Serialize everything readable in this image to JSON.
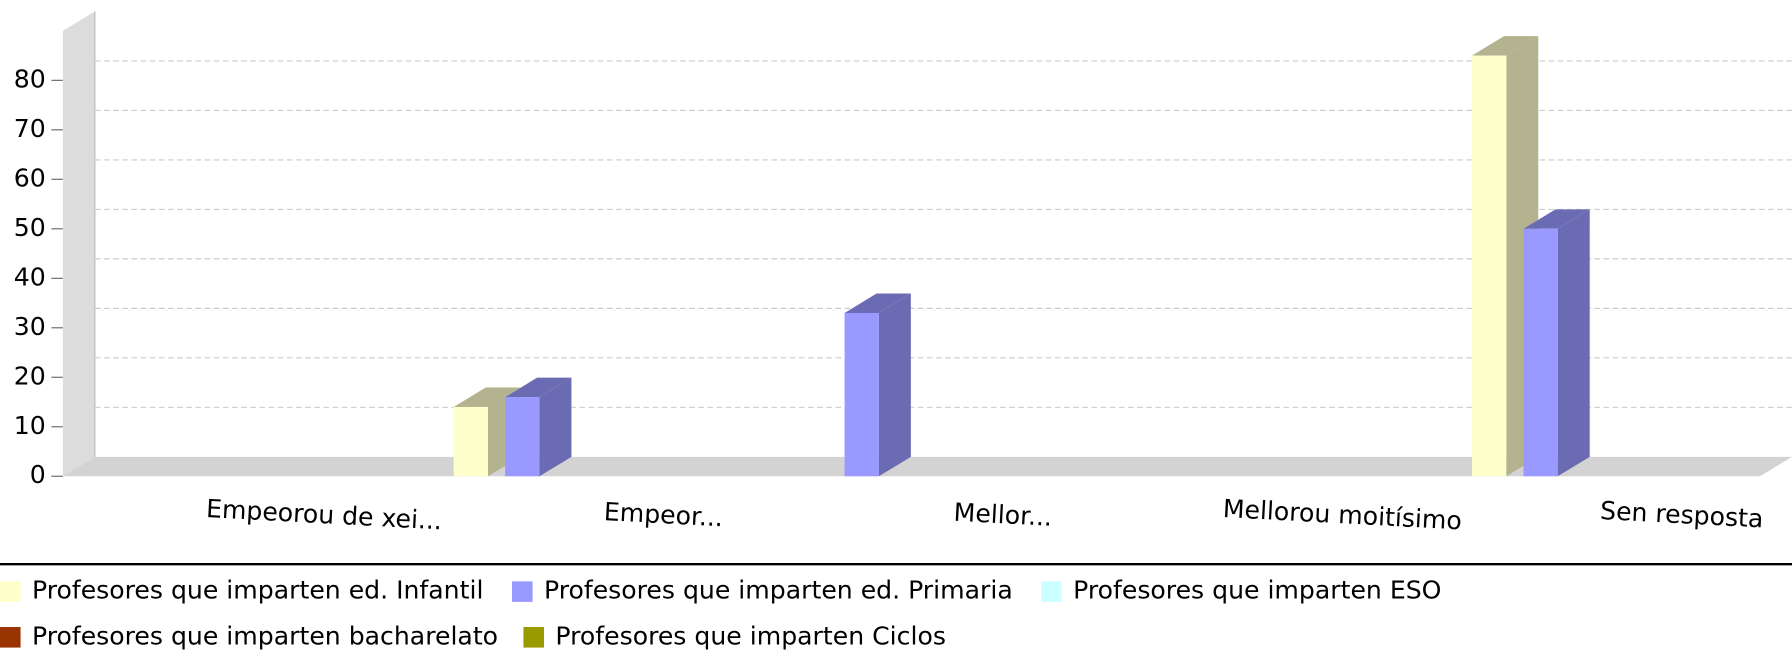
{
  "chart_data": {
    "type": "bar3d",
    "categories": [
      "Empeorou de xei...",
      "Empeor...",
      "Mellor...",
      "Mellorou moitísimo",
      "Sen resposta"
    ],
    "series": [
      {
        "name": "Profesores que imparten ed. Infantil",
        "color": "#ffffcc",
        "values": [
          0,
          14,
          0,
          0,
          85
        ]
      },
      {
        "name": "Profesores que imparten ed. Primaria",
        "color": "#9999ff",
        "values": [
          0,
          16,
          33,
          0,
          50
        ]
      },
      {
        "name": "Profesores que imparten ESO",
        "color": "#ccffff",
        "values": [
          0,
          0,
          0,
          0,
          0
        ]
      },
      {
        "name": "Profesores que imparten bacharelato",
        "color": "#993300",
        "values": [
          0,
          0,
          0,
          0,
          0
        ]
      },
      {
        "name": "Profesores que imparten Ciclos",
        "color": "#999900",
        "values": [
          0,
          0,
          0,
          0,
          0
        ]
      }
    ],
    "ylim": [
      0,
      90
    ],
    "yticks": [
      0,
      10,
      20,
      30,
      40,
      50,
      60,
      70,
      80
    ],
    "grid": true
  }
}
